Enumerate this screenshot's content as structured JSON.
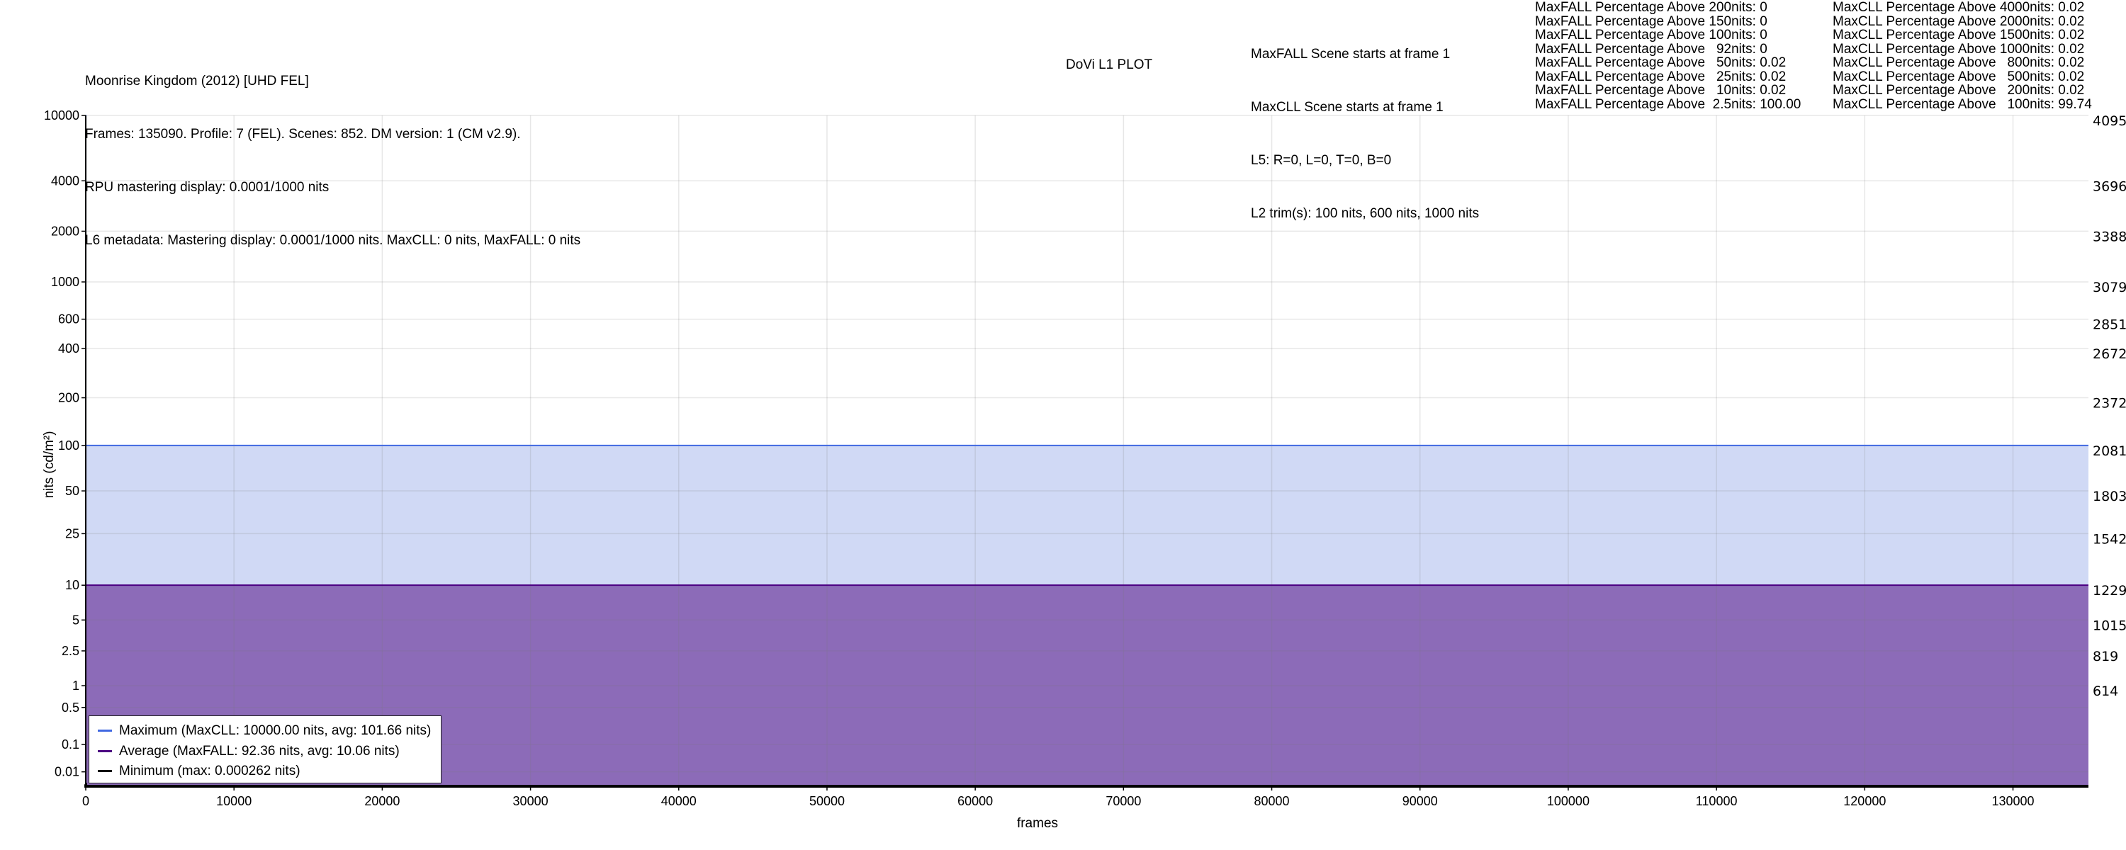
{
  "header": {
    "info_lines": [
      "Moonrise Kingdom (2012) [UHD FEL]",
      "Frames: 135090. Profile: 7 (FEL). Scenes: 852. DM version: 1 (CM v2.9).",
      "RPU mastering display: 0.0001/1000 nits",
      "L6 metadata: Mastering display: 0.0001/1000 nits. MaxCLL: 0 nits, MaxFALL: 0 nits"
    ],
    "plot_title": "DoVi L1 PLOT",
    "scene_lines": [
      "MaxFALL Scene starts at frame 1",
      "MaxCLL Scene starts at frame 1",
      "L5: R=0, L=0, T=0, B=0",
      "L2 trim(s): 100 nits, 600 nits, 1000 nits"
    ],
    "maxfall_stats": [
      "MaxFALL Percentage Above 200nits: 0",
      "MaxFALL Percentage Above 150nits: 0",
      "MaxFALL Percentage Above 100nits: 0",
      "MaxFALL Percentage Above   92nits: 0",
      "MaxFALL Percentage Above   50nits: 0.02",
      "MaxFALL Percentage Above   25nits: 0.02",
      "MaxFALL Percentage Above   10nits: 0.02",
      "MaxFALL Percentage Above  2.5nits: 100.00"
    ],
    "maxcll_stats": [
      "MaxCLL Percentage Above 4000nits: 0.02",
      "MaxCLL Percentage Above 2000nits: 0.02",
      "MaxCLL Percentage Above 1500nits: 0.02",
      "MaxCLL Percentage Above 1000nits: 0.02",
      "MaxCLL Percentage Above   800nits: 0.02",
      "MaxCLL Percentage Above   500nits: 0.02",
      "MaxCLL Percentage Above   200nits: 0.02",
      "MaxCLL Percentage Above   100nits: 99.74"
    ]
  },
  "chart_data": {
    "type": "area",
    "title": "DoVi L1 PLOT",
    "xlabel": "frames",
    "ylabel": "nits (cd/m²)",
    "xlim": [
      0,
      135090
    ],
    "ylim": [
      0,
      10000
    ],
    "y_scale": "PQ",
    "grid": true,
    "legend_placement": "bottom-left",
    "x_ticks": [
      "0",
      "10000",
      "20000",
      "30000",
      "40000",
      "50000",
      "60000",
      "70000",
      "80000",
      "90000",
      "100000",
      "110000",
      "120000",
      "130000"
    ],
    "y_ticks": [
      "10000",
      "4000",
      "2000",
      "1000",
      "600",
      "400",
      "200",
      "100",
      "50",
      "25",
      "10",
      "5",
      "2.5",
      "1",
      "0.5",
      "0.1",
      "0.01"
    ],
    "y2_ticks": [
      "4095",
      "3696",
      "3388",
      "3079",
      "2851",
      "2672",
      "2372",
      "2081",
      "1803",
      "1542",
      "1229",
      "1015",
      "819",
      "614"
    ],
    "series": [
      {
        "name": "Maximum (MaxCLL: 10000.00 nits, avg: 101.66 nits)",
        "color": "#4169e1",
        "fill": "#d0d9f5",
        "x": [
          0,
          1,
          135090
        ],
        "y": [
          10000,
          100,
          100
        ]
      },
      {
        "name": "Average (MaxFALL: 92.36 nits, avg: 10.06 nits)",
        "color": "#4b0082",
        "fill": "#8c6bb8",
        "x": [
          0,
          1,
          135090
        ],
        "y": [
          92.36,
          10,
          10
        ]
      },
      {
        "name": "Minimum (max: 0.000262 nits)",
        "color": "#000000",
        "fill": "#000000",
        "x": [
          0,
          1,
          135090
        ],
        "y": [
          0.000262,
          0,
          0
        ]
      }
    ]
  }
}
